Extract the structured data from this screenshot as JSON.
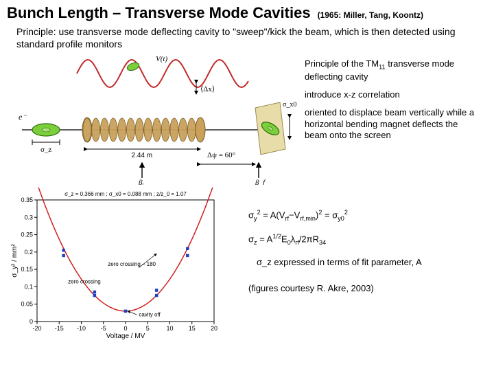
{
  "title": "Bunch Length – Transverse Mode Cavities",
  "citation": "(1965: Miller, Tang, Koontz)",
  "principle_text": "Principle: use transverse mode deflecting cavity to \"sweep\"/kick the beam, which is then detected using standard profile monitors",
  "side": {
    "heading": "Principle of the TM",
    "heading_sub": "11",
    "heading_rest": " transverse mode deflecting cavity",
    "intro": "introduce x-z correlation",
    "desc": "oriented to displace beam vertically while a horizontal bending magnet deflects the beam onto the screen"
  },
  "schematic": {
    "sine_color": "#c32b2b",
    "sine_amp": 20,
    "sine_period": 64,
    "cavity_len_label": "2.44 m",
    "phase_label": "Δψ = 60°",
    "beta_i": "βᵢ",
    "beta_f": "β_f",
    "sigma_z": "σ_z",
    "sigma_x0": "σ_x0",
    "vt_label": "V(t)",
    "dx_label": "⟨Δx⟩",
    "e_label": "e⁻",
    "bunch_color": "#7bcf3a",
    "bunch_edge": "#2d6b0e",
    "cavity_color": "#c9a15b",
    "cavity_edge": "#7a5a20",
    "screen_color": "#e8dca8"
  },
  "chart": {
    "type": "scatter-with-fit",
    "xlim": [
      -20,
      20
    ],
    "ylim": [
      0,
      0.35
    ],
    "xticks": [
      -20,
      -15,
      -10,
      -5,
      0,
      5,
      10,
      15,
      20
    ],
    "yticks": [
      0,
      0.05,
      0.1,
      0.15,
      0.2,
      0.25,
      0.3,
      0.35
    ],
    "xlabel": "Voltage / MV",
    "ylabel": "σ_y² / mm²",
    "grid_color": "#e0e0e0",
    "axis_color": "#000000",
    "background_color": "#ffffff",
    "curve_color": "#d02020",
    "curve_width": 1.5,
    "marker_color": "#2040c0",
    "marker_size": 3.5,
    "points": [
      {
        "x": -14,
        "y": 0.19
      },
      {
        "x": -14,
        "y": 0.205
      },
      {
        "x": -7,
        "y": 0.075
      },
      {
        "x": -7,
        "y": 0.085
      },
      {
        "x": 0,
        "y": 0.03
      },
      {
        "x": 7,
        "y": 0.075
      },
      {
        "x": 7,
        "y": 0.09
      },
      {
        "x": 14,
        "y": 0.19
      },
      {
        "x": 14,
        "y": 0.21
      }
    ],
    "fit_A": 0.00092,
    "fit_C": 0.03,
    "header_text": "σ_z = 0.366 mm ;  σ_x0 = 0.088 mm ; z/z_0 = 1.07",
    "anno_zero": "zero crossing",
    "anno_180": "zero crossing – 180",
    "anno_cavity": "cavity off"
  },
  "equations": {
    "eq1_left": "σ_y² = A(V_rf − V_rf,min)² = σ_y0²",
    "eq2_left": "σ_z = A^{1/2} E_0 λ_rf / 2π R_34",
    "note": "σ_z expressed in terms of fit parameter, A",
    "credit": "(figures courtesy R. Akre, 2003)"
  }
}
